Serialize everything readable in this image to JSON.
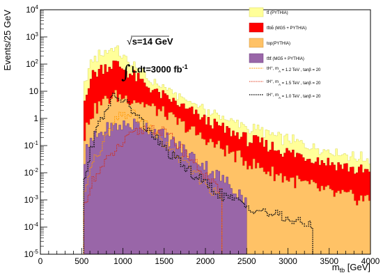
{
  "chart_data": {
    "type": "area",
    "xlabel": "m_tb [GeV]",
    "xlabel_main": "m",
    "xlabel_sub": "tb",
    "xlabel_unit": " [GeV]",
    "ylabel": "Events/25 GeV",
    "xlim": [
      0,
      4000
    ],
    "ylim_log10": [
      -5,
      4
    ],
    "y_log_scale": true,
    "bin_width": 25,
    "x_ticks": [
      0,
      500,
      1000,
      1500,
      2000,
      2500,
      3000,
      3500,
      4000
    ],
    "y_ticks": [
      {
        "mant": "10",
        "exp": "4",
        "pow": 4
      },
      {
        "mant": "10",
        "exp": "3",
        "pow": 3
      },
      {
        "mant": "10",
        "exp": "2",
        "pow": 2
      },
      {
        "mant": "10",
        "exp": "",
        "pow": 1
      },
      {
        "mant": "1",
        "exp": "",
        "pow": 0
      },
      {
        "mant": "10",
        "exp": "-1",
        "pow": -1
      },
      {
        "mant": "10",
        "exp": "-2",
        "pow": -2
      },
      {
        "mant": "10",
        "exp": "-3",
        "pow": -3
      },
      {
        "mant": "10",
        "exp": "-4",
        "pow": -4
      },
      {
        "mant": "10",
        "exp": "-5",
        "pow": -5
      }
    ],
    "annotations": {
      "energy": "√s=14 GeV",
      "energy_prefix": "√",
      "energy_text": "s=14 GeV",
      "lumi_text": "Ldt=3000 fb",
      "lumi_exp": "-1"
    },
    "stack": [
      {
        "name": "tt̄ (PYTHIA)",
        "color": "#ffff99",
        "edge": "#d8d860",
        "shape": [
          [
            525,
            5.8
          ],
          [
            550,
            25
          ],
          [
            600,
            60
          ],
          [
            700,
            150
          ],
          [
            800,
            220
          ],
          [
            850,
            300
          ],
          [
            900,
            260
          ],
          [
            1000,
            120
          ],
          [
            1100,
            55
          ],
          [
            1200,
            28
          ],
          [
            1300,
            14
          ],
          [
            1400,
            9
          ],
          [
            1500,
            6
          ],
          [
            1600,
            4
          ],
          [
            1800,
            2.0
          ],
          [
            2000,
            1.1
          ],
          [
            2200,
            0.6
          ],
          [
            2500,
            0.28
          ],
          [
            2800,
            0.16
          ],
          [
            3000,
            0.11
          ],
          [
            3300,
            0.06
          ],
          [
            3600,
            0.035
          ],
          [
            3800,
            0.025
          ],
          [
            4000,
            0.018
          ]
        ]
      },
      {
        "name": "tt̄bb̄ (MG5 + PYTHIA)",
        "color": "#ff0000",
        "edge": "#bb0000",
        "shape": [
          [
            525,
            2.3
          ],
          [
            550,
            8
          ],
          [
            600,
            28
          ],
          [
            700,
            55
          ],
          [
            800,
            80
          ],
          [
            900,
            95
          ],
          [
            1000,
            65
          ],
          [
            1100,
            38
          ],
          [
            1200,
            22
          ],
          [
            1300,
            12
          ],
          [
            1400,
            7
          ],
          [
            1500,
            4.5
          ],
          [
            1600,
            3
          ],
          [
            1800,
            1.5
          ],
          [
            2000,
            0.7
          ],
          [
            2200,
            0.35
          ],
          [
            2500,
            0.15
          ],
          [
            2800,
            0.08
          ],
          [
            3000,
            0.05
          ],
          [
            3300,
            0.03
          ],
          [
            3600,
            0.018
          ],
          [
            3800,
            0.012
          ],
          [
            4000,
            0.009
          ]
        ]
      },
      {
        "name": "top(PYTHIA)",
        "color": "#ffc266",
        "edge": "#cc8f33",
        "shape": [
          [
            525,
            0.04
          ],
          [
            550,
            0.3
          ],
          [
            600,
            1.0
          ],
          [
            700,
            2.5
          ],
          [
            800,
            4.5
          ],
          [
            900,
            6
          ],
          [
            1000,
            5.5
          ],
          [
            1100,
            4.5
          ],
          [
            1200,
            3.5
          ],
          [
            1300,
            2.5
          ],
          [
            1400,
            1.8
          ],
          [
            1500,
            1.2
          ],
          [
            1600,
            0.8
          ],
          [
            1800,
            0.35
          ],
          [
            2000,
            0.15
          ],
          [
            2200,
            0.07
          ],
          [
            2500,
            0.025
          ],
          [
            2800,
            0.01
          ],
          [
            3000,
            0.006
          ],
          [
            3300,
            0.003
          ],
          [
            3600,
            0.0015
          ],
          [
            3800,
            0.0012
          ],
          [
            4000,
            0.001
          ]
        ]
      },
      {
        "name": "tt̄tt̄ (MG5 + PYTHIA)",
        "color": "#9966a8",
        "edge": "#6e3f7e",
        "shape": [
          [
            525,
            0.01
          ],
          [
            550,
            0.05
          ],
          [
            600,
            0.12
          ],
          [
            700,
            0.25
          ],
          [
            800,
            0.38
          ],
          [
            900,
            0.48
          ],
          [
            1000,
            0.55
          ],
          [
            1100,
            0.6
          ],
          [
            1200,
            0.58
          ],
          [
            1300,
            0.48
          ],
          [
            1400,
            0.35
          ],
          [
            1500,
            0.22
          ],
          [
            1600,
            0.14
          ],
          [
            1800,
            0.05
          ],
          [
            2000,
            0.018
          ],
          [
            2200,
            0.006
          ],
          [
            2400,
            0.002
          ],
          [
            2500,
            0.001
          ]
        ]
      }
    ],
    "signals": [
      {
        "label_main": "tH",
        "label_sup": "+",
        "label_params": ",  m",
        "label_sub": "A",
        "label_rest": " = 1.2   TeV   ,  tanβ = 20",
        "color": "#ff9900",
        "dash": "2,1.2",
        "width": 1,
        "shape": [
          [
            525,
            0.001
          ],
          [
            550,
            0.003
          ],
          [
            600,
            0.012
          ],
          [
            700,
            0.05
          ],
          [
            800,
            0.2
          ],
          [
            900,
            0.7
          ],
          [
            1000,
            1.4
          ],
          [
            1100,
            1.5
          ],
          [
            1200,
            1.0
          ],
          [
            1300,
            0.5
          ],
          [
            1400,
            0.25
          ],
          [
            1500,
            0.12
          ],
          [
            1600,
            0.06
          ],
          [
            1800,
            0.015
          ],
          [
            2000,
            0.004
          ],
          [
            2200,
            0.001
          ]
        ]
      },
      {
        "label_main": "tH",
        "label_sup": "+",
        "label_params": ",  m",
        "label_sub": "A",
        "label_rest": " = 1.5   TeV   ,  tanβ = 20",
        "color": "#dd2200",
        "dash": "1.2,1.2",
        "width": 1,
        "shape": [
          [
            525,
            0.0005
          ],
          [
            550,
            0.001
          ],
          [
            600,
            0.003
          ],
          [
            700,
            0.01
          ],
          [
            800,
            0.025
          ],
          [
            900,
            0.06
          ],
          [
            1000,
            0.12
          ],
          [
            1100,
            0.22
          ],
          [
            1200,
            0.35
          ],
          [
            1300,
            0.45
          ],
          [
            1400,
            0.42
          ],
          [
            1500,
            0.3
          ],
          [
            1600,
            0.17
          ],
          [
            1800,
            0.04
          ],
          [
            2000,
            0.008
          ],
          [
            2200,
            0.0015
          ]
        ]
      },
      {
        "label_main": "tH",
        "label_sup": "+",
        "label_params": ",  m",
        "label_sub": "A",
        "label_rest": " = 1.0   TeV   ,  tanβ = 20",
        "color": "#111111",
        "dash": "1.5,1.5",
        "width": 1.5,
        "shape": [
          [
            525,
            0.002
          ],
          [
            550,
            0.01
          ],
          [
            600,
            0.06
          ],
          [
            700,
            0.5
          ],
          [
            800,
            2.5
          ],
          [
            900,
            6
          ],
          [
            1000,
            5
          ],
          [
            1100,
            2.2
          ],
          [
            1200,
            0.9
          ],
          [
            1300,
            0.4
          ],
          [
            1400,
            0.18
          ],
          [
            1500,
            0.08
          ],
          [
            1600,
            0.04
          ],
          [
            1800,
            0.012
          ],
          [
            2000,
            0.004
          ],
          [
            2200,
            0.0015
          ],
          [
            2500,
            0.0006
          ],
          [
            2800,
            0.0003
          ],
          [
            3000,
            0.0002
          ],
          [
            3300,
            0.0001
          ]
        ]
      }
    ]
  }
}
